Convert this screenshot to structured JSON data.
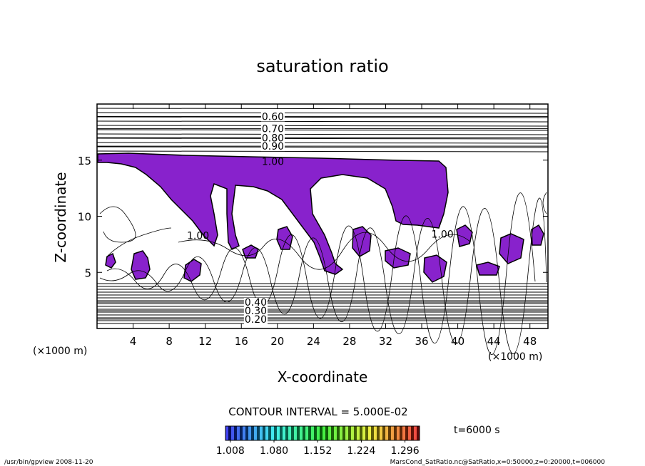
{
  "chart_data": {
    "type": "contour",
    "title": "saturation ratio",
    "x_label": "X-coordinate",
    "y_label": "Z-coordinate",
    "x_unit": "(×1000 m)",
    "y_unit": "(×1000 m)",
    "xlim": [
      0,
      50
    ],
    "xticks": [
      4,
      8,
      12,
      16,
      20,
      24,
      28,
      32,
      36,
      40,
      44,
      48
    ],
    "ylim": [
      0,
      20
    ],
    "yticks": [
      5,
      10,
      15
    ],
    "fill_color": "#8822cc",
    "contour_labels": [
      {
        "value": 0.6,
        "label": "0.60",
        "x": 19.5,
        "z": 18.9
      },
      {
        "value": 0.7,
        "label": "0.70",
        "x": 19.5,
        "z": 17.8
      },
      {
        "value": 0.8,
        "label": "0.80",
        "x": 19.5,
        "z": 17.0
      },
      {
        "value": 0.9,
        "label": "0.90",
        "x": 19.5,
        "z": 16.25
      },
      {
        "value": 1,
        "label": "1.00",
        "x": 19.5,
        "z": 14.9
      },
      {
        "value": 1,
        "label": "1.00",
        "x": 11.2,
        "z": 8.3
      },
      {
        "value": 1,
        "label": "1.00",
        "x": 38.3,
        "z": 8.4
      },
      {
        "value": 0.4,
        "label": "0.40",
        "x": 17.6,
        "z": 2.35
      },
      {
        "value": 0.3,
        "label": "0.30",
        "x": 17.6,
        "z": 1.59
      },
      {
        "value": 0.2,
        "label": "0.20",
        "x": 17.6,
        "z": 0.83
      }
    ],
    "contour_interval_label": "CONTOUR INTERVAL = 5.000E-02",
    "colorbar": {
      "clim": [
        1.0,
        1.32
      ],
      "ticks": [
        {
          "value": 1.008,
          "label": "1.008"
        },
        {
          "value": 1.08,
          "label": "1.080"
        },
        {
          "value": 1.152,
          "label": "1.152"
        },
        {
          "value": 1.224,
          "label": "1.224"
        },
        {
          "value": 1.296,
          "label": "1.296"
        }
      ]
    },
    "time_label": "t=6000 s",
    "footer_left": "/usr/bin/gpview  2008-11-20",
    "footer_right": "MarsCond_SatRatio.nc@SatRatio,x=0:50000,z=0:20000,t=006000"
  }
}
